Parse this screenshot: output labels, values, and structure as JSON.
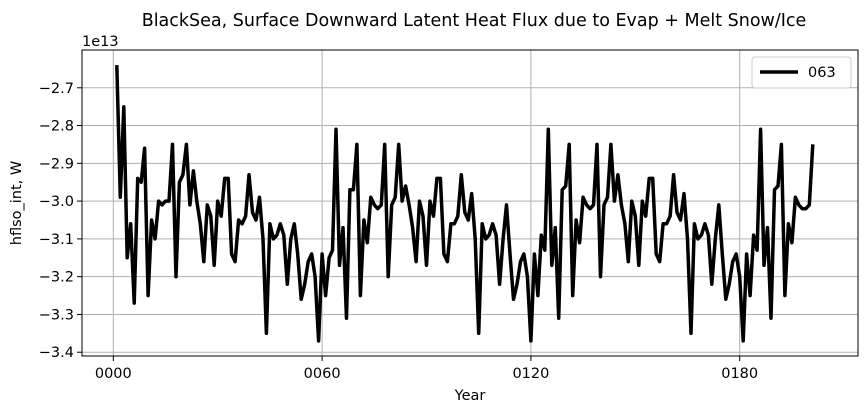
{
  "chart_data": {
    "type": "line",
    "title": "BlackSea, Surface Downward Latent Heat Flux due to Evap + Melt Snow/Ice",
    "xlabel": "Year",
    "ylabel": "hflso_int, W",
    "offset_label": "1e13",
    "xlim": [
      -9,
      214
    ],
    "ylim": [
      -3.41,
      -2.6
    ],
    "x_ticks": [
      0,
      60,
      120,
      180
    ],
    "x_tick_labels": [
      "0000",
      "0060",
      "0120",
      "0180"
    ],
    "y_ticks": [
      -3.4,
      -3.3,
      -3.2,
      -3.1,
      -3.0,
      -2.9,
      -2.8,
      -2.7
    ],
    "y_tick_labels": [
      "−3.4",
      "−3.3",
      "−3.2",
      "−3.1",
      "−3.0",
      "−2.9",
      "−2.8",
      "−2.7"
    ],
    "grid": true,
    "legend_position": "top-right",
    "series": [
      {
        "name": "063",
        "color": "#000000",
        "x_start": 1,
        "values": [
          -2.64,
          -2.99,
          -2.75,
          -3.15,
          -3.06,
          -3.27,
          -2.94,
          -2.95,
          -2.86,
          -3.25,
          -3.05,
          -3.1,
          -3.0,
          -3.01,
          -3.0,
          -3.0,
          -2.85,
          -3.2,
          -2.95,
          -2.93,
          -2.85,
          -3.01,
          -2.92,
          -3.0,
          -3.06,
          -3.16,
          -3.01,
          -3.04,
          -3.17,
          -3.0,
          -3.04,
          -2.94,
          -2.94,
          -3.14,
          -3.16,
          -3.05,
          -3.06,
          -3.04,
          -2.93,
          -3.03,
          -3.05,
          -2.99,
          -3.1,
          -3.35,
          -3.06,
          -3.1,
          -3.09,
          -3.06,
          -3.09,
          -3.22,
          -3.1,
          -3.06,
          -3.14,
          -3.26,
          -3.22,
          -3.16,
          -3.14,
          -3.2,
          -3.37,
          -3.14,
          -3.25,
          -3.15,
          -3.13,
          -2.81,
          -3.17,
          -3.07,
          -3.31,
          -2.97,
          -2.97,
          -2.85,
          -3.25,
          -3.05,
          -3.11,
          -2.99,
          -3.01,
          -3.02,
          -3.01,
          -2.85,
          -3.2,
          -3.01,
          -2.99,
          -2.85,
          -3.0,
          -2.96,
          -3.01,
          -3.07,
          -3.16,
          -3.0,
          -3.04,
          -3.17,
          -3.0,
          -3.04,
          -2.94,
          -2.94,
          -3.14,
          -3.16,
          -3.06,
          -3.06,
          -3.04,
          -2.93,
          -3.03,
          -3.05,
          -2.98,
          -3.1,
          -3.35,
          -3.06,
          -3.1,
          -3.09,
          -3.06,
          -3.09,
          -3.22,
          -3.1,
          -3.01,
          -3.14,
          -3.26,
          -3.22,
          -3.16,
          -3.14,
          -3.2,
          -3.37,
          -3.14,
          -3.25,
          -3.09,
          -3.13,
          -2.81,
          -3.17,
          -3.07,
          -3.31,
          -2.97,
          -2.96,
          -2.85,
          -3.25,
          -3.05,
          -3.11,
          -2.99,
          -3.01,
          -3.02,
          -3.01,
          -2.85,
          -3.2,
          -3.01,
          -2.99,
          -2.85,
          -3.0,
          -2.93,
          -3.01,
          -3.06,
          -3.16,
          -3.0,
          -3.04,
          -3.17,
          -3.0,
          -3.04,
          -2.94,
          -2.94,
          -3.14,
          -3.16,
          -3.06,
          -3.06,
          -3.04,
          -2.93,
          -3.03,
          -3.05,
          -2.98,
          -3.1,
          -3.35,
          -3.06,
          -3.1,
          -3.09,
          -3.06,
          -3.09,
          -3.22,
          -3.1,
          -3.01,
          -3.14,
          -3.26,
          -3.22,
          -3.16,
          -3.14,
          -3.2,
          -3.37,
          -3.14,
          -3.25,
          -3.09,
          -3.13,
          -2.81,
          -3.17,
          -3.07,
          -3.31,
          -2.97,
          -2.96,
          -2.85,
          -3.25,
          -3.06,
          -3.11,
          -2.99,
          -3.01,
          -3.02,
          -3.02,
          -3.01,
          -2.85
        ]
      }
    ]
  }
}
